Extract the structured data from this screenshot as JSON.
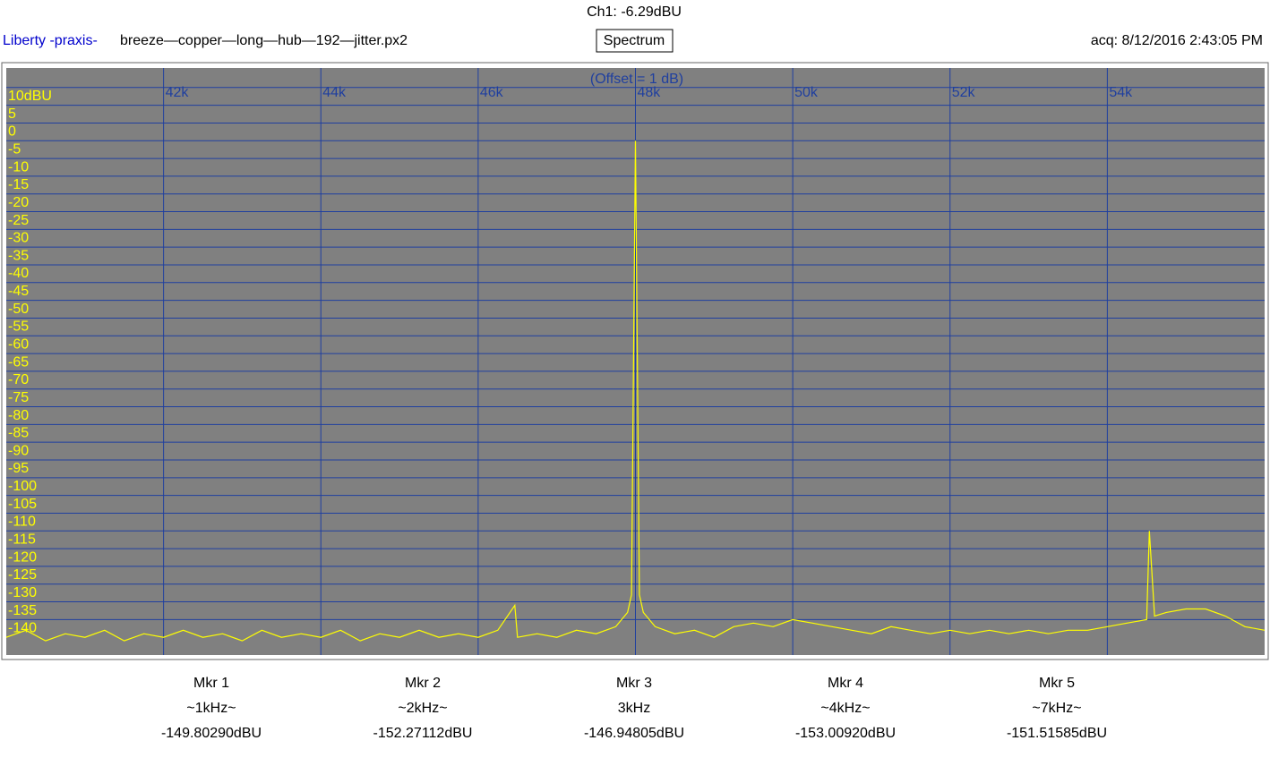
{
  "header": {
    "channel": "Ch1: -6.29dBU",
    "brand": "Liberty -praxis-",
    "file": "breeze—copper—long—hub—192—jitter.px2",
    "mode": "Spectrum",
    "acquired": "acq: 8/12/2016 2:43:05 PM"
  },
  "chart_data": {
    "type": "line",
    "annotation": "(Offset = 1 dB)",
    "x": [
      40000,
      40250,
      40500,
      40750,
      41000,
      41250,
      41500,
      41750,
      42000,
      42250,
      42500,
      42750,
      43000,
      43250,
      43500,
      43750,
      44000,
      44250,
      44500,
      44750,
      45000,
      45250,
      45500,
      45750,
      46000,
      46250,
      46466,
      46500,
      46750,
      47000,
      47250,
      47500,
      47750,
      47900,
      47950,
      48000,
      48050,
      48100,
      48250,
      48500,
      48750,
      49000,
      49250,
      49500,
      49750,
      50000,
      50250,
      50500,
      50750,
      51000,
      51250,
      51500,
      51750,
      52000,
      52250,
      52500,
      52750,
      53000,
      53250,
      53500,
      53750,
      54000,
      54250,
      54500,
      54534,
      54600,
      54750,
      55000,
      55250,
      55500,
      55750,
      56000
    ],
    "series": [
      {
        "color": "#ffff00",
        "values": [
          -145,
          -143,
          -146,
          -144,
          -145,
          -143,
          -146,
          -144,
          -145,
          -143,
          -145,
          -144,
          -146,
          -143,
          -145,
          -144,
          -145,
          -143,
          -146,
          -144,
          -145,
          -143,
          -145,
          -144,
          -145,
          -143,
          -136,
          -145,
          -144,
          -145,
          -143,
          -144,
          -142,
          -138,
          -133,
          -5,
          -133,
          -138,
          -142,
          -144,
          -143,
          -145,
          -142,
          -141,
          -142,
          -140,
          -141,
          -142,
          -143,
          -144,
          -142,
          -143,
          -144,
          -143,
          -144,
          -143,
          -144,
          -143,
          -144,
          -143,
          -143,
          -142,
          -141,
          -140,
          -115,
          -139,
          -138,
          -137,
          -137,
          -139,
          -142,
          -143
        ]
      }
    ],
    "xlim": [
      40000,
      56000
    ],
    "xticks": [
      {
        "value": 42000,
        "label": "42k"
      },
      {
        "value": 44000,
        "label": "44k"
      },
      {
        "value": 46000,
        "label": "46k"
      },
      {
        "value": 48000,
        "label": "48k"
      },
      {
        "value": 50000,
        "label": "50k"
      },
      {
        "value": 52000,
        "label": "52k"
      },
      {
        "value": 54000,
        "label": "54k"
      }
    ],
    "ylim": [
      -150,
      15.5
    ],
    "yticks": [
      {
        "value": 10,
        "label": "10dBU"
      },
      5,
      0,
      -5,
      -10,
      -15,
      -20,
      -25,
      -30,
      -35,
      -40,
      -45,
      -50,
      -55,
      -60,
      -65,
      -70,
      -75,
      -80,
      -85,
      -90,
      -95,
      -100,
      -105,
      -110,
      -115,
      -120,
      -125,
      -130,
      -135,
      -140
    ],
    "grid": true
  },
  "markers": [
    {
      "name": "Mkr 1",
      "freq": "~1kHz~",
      "level": "-149.80290dBU"
    },
    {
      "name": "Mkr 2",
      "freq": "~2kHz~",
      "level": "-152.27112dBU"
    },
    {
      "name": "Mkr 3",
      "freq": "3kHz",
      "level": "-146.94805dBU"
    },
    {
      "name": "Mkr 4",
      "freq": "~4kHz~",
      "level": "-153.00920dBU"
    },
    {
      "name": "Mkr 5",
      "freq": "~7kHz~",
      "level": "-151.51585dBU"
    }
  ]
}
